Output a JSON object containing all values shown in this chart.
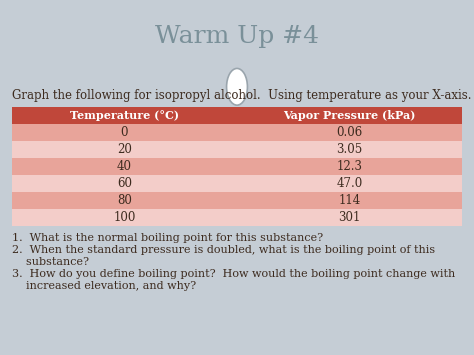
{
  "title": "Warm Up #4",
  "title_fontsize": 18,
  "slide_bg": "#c5cdd5",
  "title_bar_bg": "#ffffff",
  "separator_color": "#aab3bb",
  "header_text": "Graph the following for isopropyl alcohol.  Using temperature as your X-axis.",
  "header_fontsize": 8.5,
  "col1_header": "Temperature (°C)",
  "col2_header": "Vapor Pressure (kPa)",
  "table_header_bg": "#c0473a",
  "table_header_color": "#ffffff",
  "row_colors": [
    "#e8a49a",
    "#f3cdc9",
    "#e8a49a",
    "#f3cdc9",
    "#e8a49a",
    "#f3cdc9"
  ],
  "temperatures": [
    "0",
    "20",
    "40",
    "60",
    "80",
    "100"
  ],
  "pressures": [
    "0.06",
    "3.05",
    "12.3",
    "47.0",
    "114",
    "301"
  ],
  "table_text_color": "#3d2b1f",
  "q1": "What is the normal boiling point for this substance?",
  "q2a": "When the standard pressure is doubled, what is the boiling point of this",
  "q2b": "      substance?",
  "q3a": "How do you define boiling point?  How would the boiling point change with",
  "q3b": "      increased elevation, and why?",
  "question_fontsize": 8.0,
  "circle_fill": "#ffffff",
  "circle_edge": "#9aa5ad",
  "title_color": "#7a9099"
}
